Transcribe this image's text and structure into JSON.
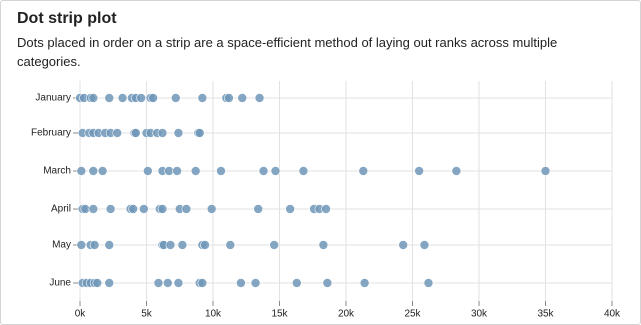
{
  "chart_data": {
    "type": "strip",
    "title": "Dot strip plot",
    "subtitle": "Dots placed in order on a strip are a space-efficient method of laying out ranks across multiple categories.",
    "categories": [
      "January",
      "February",
      "March",
      "April",
      "May",
      "June"
    ],
    "color": "#6f97b8",
    "values": [
      [
        0,
        300,
        800,
        1000,
        2200,
        3200,
        3900,
        4200,
        4600,
        5300,
        5500,
        7200,
        9200,
        11000,
        11200,
        12200,
        13500
      ],
      [
        200,
        700,
        1000,
        1400,
        1900,
        2300,
        2800,
        4100,
        4200,
        5000,
        5300,
        5800,
        6200,
        7400,
        8900,
        9000
      ],
      [
        100,
        1000,
        1700,
        5100,
        6200,
        6700,
        7300,
        8700,
        10600,
        13800,
        14700,
        16800,
        21300,
        25500,
        28300,
        35000
      ],
      [
        200,
        400,
        1000,
        2300,
        3800,
        4000,
        4800,
        6000,
        6200,
        7500,
        8000,
        9900,
        13400,
        15800,
        17600,
        18000,
        18500
      ],
      [
        100,
        800,
        1100,
        2200,
        6200,
        6300,
        6800,
        7700,
        9200,
        9400,
        11300,
        14600,
        18300,
        24300,
        25900
      ],
      [
        200,
        500,
        800,
        1100,
        1300,
        2200,
        5900,
        6600,
        7400,
        9000,
        9200,
        12100,
        13200,
        16300,
        18600,
        21400,
        26200
      ]
    ],
    "xlim": [
      0,
      40000
    ],
    "xticks": [
      {
        "value": 0,
        "label": "0k"
      },
      {
        "value": 5000,
        "label": "5k"
      },
      {
        "value": 10000,
        "label": "10k"
      },
      {
        "value": 15000,
        "label": "15k"
      },
      {
        "value": 20000,
        "label": "20k"
      },
      {
        "value": 25000,
        "label": "25k"
      },
      {
        "value": 30000,
        "label": "30k"
      },
      {
        "value": 35000,
        "label": "35k"
      },
      {
        "value": 40000,
        "label": "40k"
      }
    ],
    "grid": true
  }
}
